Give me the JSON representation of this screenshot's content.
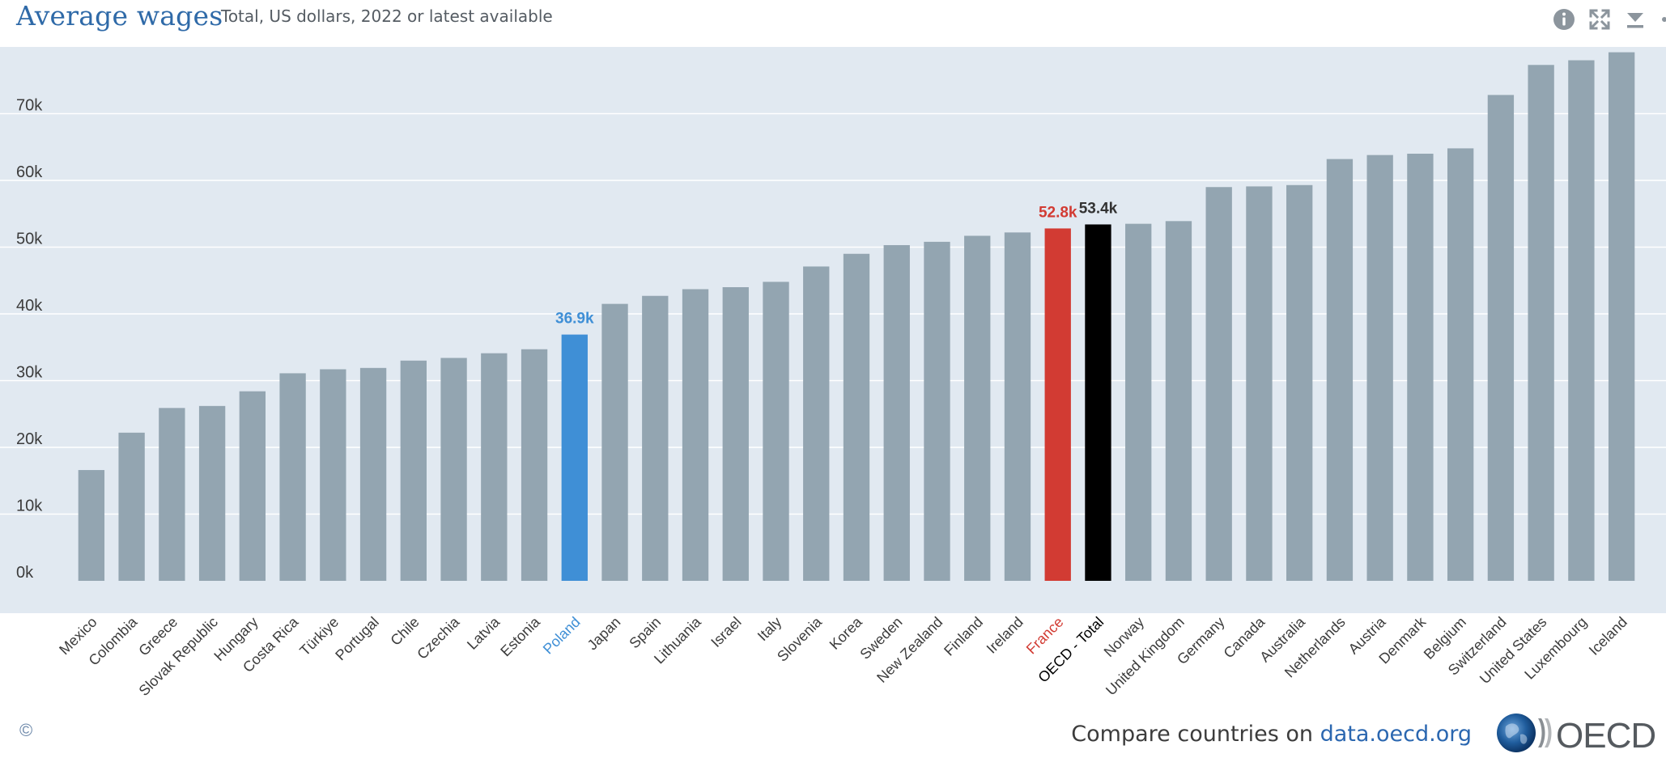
{
  "header": {
    "title": "Average wages",
    "subtitle": "Total, US dollars, 2022 or latest available"
  },
  "toolbar": {
    "info": "info-icon",
    "expand": "expand-icon",
    "download": "download-icon"
  },
  "footer": {
    "copyright": "©",
    "compare_prefix": "Compare countries on ",
    "compare_link": "data.oecd.org",
    "logo_text": "OECD"
  },
  "colors": {
    "default_bar": "#93a5b1",
    "highlight_poland": "#3f8fd6",
    "highlight_france": "#d23b33",
    "highlight_oecd": "#000000",
    "plot_background": "#e1e9f1",
    "gridline": "#ffffff"
  },
  "chart_data": {
    "type": "bar",
    "title": "Average wages",
    "subtitle": "Total, US dollars, 2022 or latest available",
    "xlabel": "",
    "ylabel": "",
    "ylim": [
      0,
      80000
    ],
    "yticks": [
      0,
      10000,
      20000,
      30000,
      40000,
      50000,
      60000,
      70000
    ],
    "ytick_labels": [
      "0k",
      "10k",
      "20k",
      "30k",
      "40k",
      "50k",
      "60k",
      "70k"
    ],
    "grid": true,
    "categories": [
      "Mexico",
      "Colombia",
      "Greece",
      "Slovak Republic",
      "Hungary",
      "Costa Rica",
      "Türkiye",
      "Portugal",
      "Chile",
      "Czechia",
      "Latvia",
      "Estonia",
      "Poland",
      "Japan",
      "Spain",
      "Lithuania",
      "Israel",
      "Italy",
      "Slovenia",
      "Korea",
      "Sweden",
      "New Zealand",
      "Finland",
      "Ireland",
      "France",
      "OECD - Total",
      "Norway",
      "United Kingdom",
      "Germany",
      "Canada",
      "Australia",
      "Netherlands",
      "Austria",
      "Denmark",
      "Belgium",
      "Switzerland",
      "United States",
      "Luxembourg",
      "Iceland"
    ],
    "values": [
      16600,
      22200,
      25900,
      26200,
      28400,
      31100,
      31700,
      31900,
      33000,
      33400,
      34100,
      34700,
      36900,
      41500,
      42700,
      43700,
      44000,
      44800,
      47100,
      49000,
      50300,
      50800,
      51700,
      52200,
      52800,
      53400,
      53500,
      53900,
      59000,
      59100,
      59300,
      63200,
      63800,
      64000,
      64800,
      72800,
      77300,
      78000,
      79200
    ],
    "highlights": [
      {
        "category": "Poland",
        "label": "36.9k",
        "color": "#3f8fd6",
        "label_color": "#3f8fd6"
      },
      {
        "category": "France",
        "label": "52.8k",
        "color": "#d23b33",
        "label_color": "#d23b33"
      },
      {
        "category": "OECD - Total",
        "label": "53.4k",
        "color": "#000000",
        "label_color": "#333333"
      }
    ]
  }
}
